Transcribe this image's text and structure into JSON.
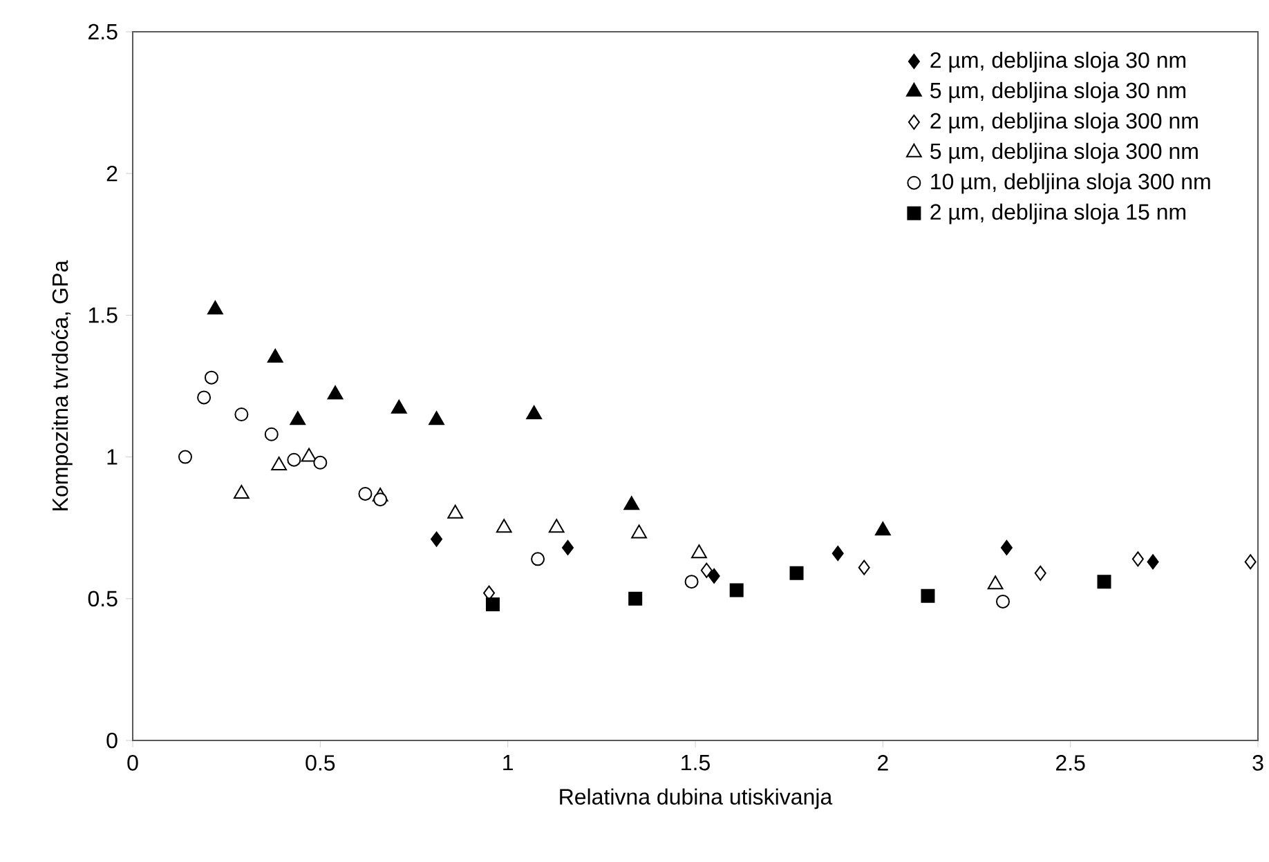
{
  "chart_data": {
    "type": "scatter",
    "xlabel": "Relativna dubina utiskivanja",
    "ylabel": "Kompozitna tvrdoća, GPa",
    "xlim": [
      0,
      3
    ],
    "ylim": [
      0,
      2.5
    ],
    "xticks": [
      0,
      0.5,
      1,
      1.5,
      2,
      2.5,
      3
    ],
    "yticks": [
      0,
      0.5,
      1,
      1.5,
      2,
      2.5
    ],
    "grid": false,
    "legend": "top right",
    "series": [
      {
        "name": "2 µm, debljina sloja 30 nm",
        "color": "#000000",
        "marker": "diamond",
        "x": [
          0.81,
          1.16,
          1.55,
          1.88,
          2.33,
          2.72
        ],
        "values": [
          0.71,
          0.68,
          0.58,
          0.66,
          0.68,
          0.63
        ]
      },
      {
        "name": "5 µm, debljina sloja 30 nm",
        "color": "#000000",
        "marker": "triangle",
        "x": [
          0.22,
          0.38,
          0.44,
          0.54,
          0.71,
          0.81,
          1.07,
          1.33,
          2.0
        ],
        "values": [
          1.52,
          1.35,
          1.13,
          1.22,
          1.17,
          1.13,
          1.15,
          0.83,
          0.74
        ]
      },
      {
        "name": "2 µm, debljina sloja 300 nm",
        "color": "#ffffff",
        "marker": "diamond",
        "x": [
          0.95,
          1.53,
          1.95,
          2.42,
          2.68,
          2.98
        ],
        "values": [
          0.52,
          0.6,
          0.61,
          0.59,
          0.64,
          0.63
        ]
      },
      {
        "name": "5 µm, debljina sloja 300 nm",
        "color": "#ffffff",
        "marker": "triangle",
        "x": [
          0.29,
          0.39,
          0.47,
          0.66,
          0.86,
          0.99,
          1.13,
          1.35,
          1.51,
          2.3
        ],
        "values": [
          0.87,
          0.97,
          1.0,
          0.86,
          0.8,
          0.75,
          0.75,
          0.73,
          0.66,
          0.55
        ]
      },
      {
        "name": "10 µm, debljina sloja 300 nm",
        "color": "#ffffff",
        "marker": "circle",
        "x": [
          0.14,
          0.19,
          0.21,
          0.29,
          0.37,
          0.43,
          0.5,
          0.62,
          0.66,
          1.08,
          1.49,
          2.32
        ],
        "values": [
          1.0,
          1.21,
          1.28,
          1.15,
          1.08,
          0.99,
          0.98,
          0.87,
          0.85,
          0.64,
          0.56,
          0.49
        ]
      },
      {
        "name": "2 µm, debljina sloja 15 nm",
        "color": "#000000",
        "marker": "square",
        "x": [
          0.96,
          1.34,
          1.61,
          1.77,
          2.12,
          2.59
        ],
        "values": [
          0.48,
          0.5,
          0.53,
          0.59,
          0.51,
          0.56
        ]
      }
    ]
  }
}
